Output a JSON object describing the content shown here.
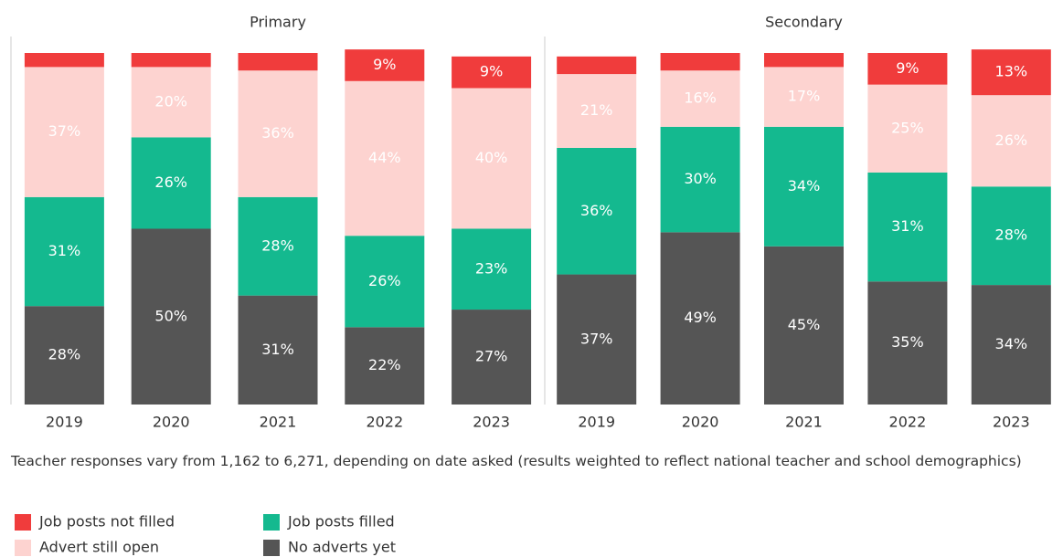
{
  "chart_data": [
    {
      "type": "bar",
      "stacked": true,
      "title": "Primary",
      "categories": [
        "2019",
        "2020",
        "2021",
        "2022",
        "2023"
      ],
      "ylim": [
        0,
        100
      ],
      "series": [
        {
          "name": "No adverts yet",
          "color": "#555555",
          "values": [
            28,
            50,
            31,
            22,
            27
          ],
          "value_labels": [
            "28%",
            "50%",
            "31%",
            "22%",
            "27%"
          ]
        },
        {
          "name": "Job posts filled",
          "color": "#14b98f",
          "values": [
            31,
            26,
            28,
            26,
            23
          ],
          "value_labels": [
            "31%",
            "26%",
            "28%",
            "26%",
            "23%"
          ]
        },
        {
          "name": "Advert still open",
          "color": "#fdd3d0",
          "values": [
            37,
            20,
            36,
            44,
            40
          ],
          "value_labels": [
            "37%",
            "20%",
            "36%",
            "44%",
            "40%"
          ]
        },
        {
          "name": "Job posts not filled",
          "color": "#f03c3c",
          "values": [
            4,
            4,
            5,
            9,
            9
          ],
          "value_labels": [
            null,
            null,
            null,
            "9%",
            "9%"
          ]
        }
      ]
    },
    {
      "type": "bar",
      "stacked": true,
      "title": "Secondary",
      "categories": [
        "2019",
        "2020",
        "2021",
        "2022",
        "2023"
      ],
      "ylim": [
        0,
        100
      ],
      "series": [
        {
          "name": "No adverts yet",
          "color": "#555555",
          "values": [
            37,
            49,
            45,
            35,
            34
          ],
          "value_labels": [
            "37%",
            "49%",
            "45%",
            "35%",
            "34%"
          ]
        },
        {
          "name": "Job posts filled",
          "color": "#14b98f",
          "values": [
            36,
            30,
            34,
            31,
            28
          ],
          "value_labels": [
            "36%",
            "30%",
            "34%",
            "31%",
            "28%"
          ]
        },
        {
          "name": "Advert still open",
          "color": "#fdd3d0",
          "values": [
            21,
            16,
            17,
            25,
            26
          ],
          "value_labels": [
            "21%",
            "16%",
            "17%",
            "25%",
            "26%"
          ]
        },
        {
          "name": "Job posts not filled",
          "color": "#f03c3c",
          "values": [
            5,
            5,
            4,
            9,
            13
          ],
          "value_labels": [
            null,
            null,
            null,
            "9%",
            "13%"
          ]
        }
      ]
    }
  ],
  "note": "Teacher responses vary from 1,162 to 6,271, depending on date asked (results weighted to reflect national teacher and school demographics)"
}
